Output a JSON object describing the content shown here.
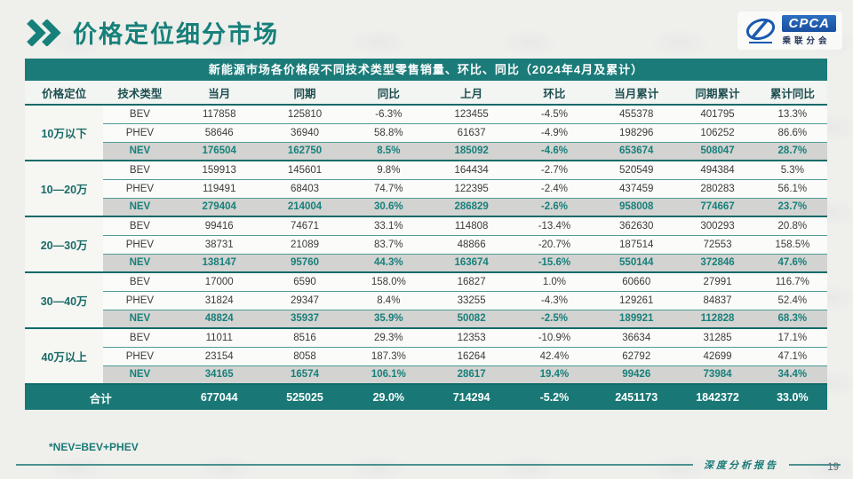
{
  "page": {
    "title": "价格定位细分市场",
    "footnote": "*NEV=BEV+PHEV",
    "footer_label": "深度分析报告",
    "page_number": "19"
  },
  "logo": {
    "text": "CPCA",
    "subtext": "乘联分会"
  },
  "colors": {
    "accent_teal": "#1b7b79",
    "nev_row_bg": "#d3d3d1",
    "total_row_bg": "#197875",
    "logo_blue": "#1a4fa0"
  },
  "table": {
    "caption": "新能源市场各价格段不同技术类型零售销量、环比、同比（2024年4月及累计）",
    "columns": [
      "价格定位",
      "技术类型",
      "当月",
      "同期",
      "同比",
      "上月",
      "环比",
      "当月累计",
      "同期累计",
      "累计同比"
    ],
    "groups": [
      {
        "segment": "10万以下",
        "rows": [
          {
            "type": "BEV",
            "values": [
              "117858",
              "125810",
              "-6.3%",
              "123455",
              "-4.5%",
              "455378",
              "401795",
              "13.3%"
            ]
          },
          {
            "type": "PHEV",
            "values": [
              "58646",
              "36940",
              "58.8%",
              "61637",
              "-4.9%",
              "198296",
              "106252",
              "86.6%"
            ]
          },
          {
            "type": "NEV",
            "values": [
              "176504",
              "162750",
              "8.5%",
              "185092",
              "-4.6%",
              "653674",
              "508047",
              "28.7%"
            ]
          }
        ]
      },
      {
        "segment": "10—20万",
        "rows": [
          {
            "type": "BEV",
            "values": [
              "159913",
              "145601",
              "9.8%",
              "164434",
              "-2.7%",
              "520549",
              "494384",
              "5.3%"
            ]
          },
          {
            "type": "PHEV",
            "values": [
              "119491",
              "68403",
              "74.7%",
              "122395",
              "-2.4%",
              "437459",
              "280283",
              "56.1%"
            ]
          },
          {
            "type": "NEV",
            "values": [
              "279404",
              "214004",
              "30.6%",
              "286829",
              "-2.6%",
              "958008",
              "774667",
              "23.7%"
            ]
          }
        ]
      },
      {
        "segment": "20—30万",
        "rows": [
          {
            "type": "BEV",
            "values": [
              "99416",
              "74671",
              "33.1%",
              "114808",
              "-13.4%",
              "362630",
              "300293",
              "20.8%"
            ]
          },
          {
            "type": "PHEV",
            "values": [
              "38731",
              "21089",
              "83.7%",
              "48866",
              "-20.7%",
              "187514",
              "72553",
              "158.5%"
            ]
          },
          {
            "type": "NEV",
            "values": [
              "138147",
              "95760",
              "44.3%",
              "163674",
              "-15.6%",
              "550144",
              "372846",
              "47.6%"
            ]
          }
        ]
      },
      {
        "segment": "30—40万",
        "rows": [
          {
            "type": "BEV",
            "values": [
              "17000",
              "6590",
              "158.0%",
              "16827",
              "1.0%",
              "60660",
              "27991",
              "116.7%"
            ]
          },
          {
            "type": "PHEV",
            "values": [
              "31824",
              "29347",
              "8.4%",
              "33255",
              "-4.3%",
              "129261",
              "84837",
              "52.4%"
            ]
          },
          {
            "type": "NEV",
            "values": [
              "48824",
              "35937",
              "35.9%",
              "50082",
              "-2.5%",
              "189921",
              "112828",
              "68.3%"
            ]
          }
        ]
      },
      {
        "segment": "40万以上",
        "rows": [
          {
            "type": "BEV",
            "values": [
              "11011",
              "8516",
              "29.3%",
              "12353",
              "-10.9%",
              "36634",
              "31285",
              "17.1%"
            ]
          },
          {
            "type": "PHEV",
            "values": [
              "23154",
              "8058",
              "187.3%",
              "16264",
              "42.4%",
              "62792",
              "42699",
              "47.1%"
            ]
          },
          {
            "type": "NEV",
            "values": [
              "34165",
              "16574",
              "106.1%",
              "28617",
              "19.4%",
              "99426",
              "73984",
              "34.4%"
            ]
          }
        ]
      }
    ],
    "total": {
      "label": "合计",
      "values": [
        "677044",
        "525025",
        "29.0%",
        "714294",
        "-5.2%",
        "2451173",
        "1842372",
        "33.0%"
      ]
    }
  }
}
